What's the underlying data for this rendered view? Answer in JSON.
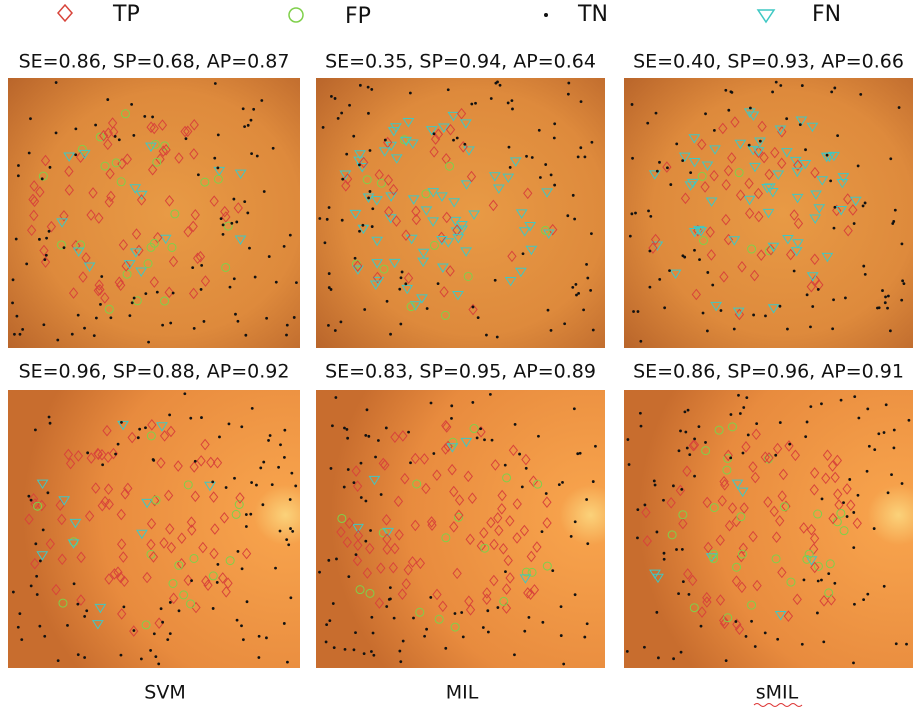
{
  "legend": [
    "TP",
    "FP",
    "TN",
    "FN"
  ],
  "panels": [
    [
      "SE=0.86, SP=0.68, AP=0.87",
      "SE=0.35, SP=0.94, AP=0.64",
      "SE=0.40, SP=0.93, AP=0.66"
    ],
    [
      "SE=0.96, SP=0.88, AP=0.92",
      "SE=0.83, SP=0.95, AP=0.89",
      "SE=0.86, SP=0.96, AP=0.91"
    ]
  ],
  "columns": [
    "SVM",
    "MIL",
    "sMIL"
  ]
}
